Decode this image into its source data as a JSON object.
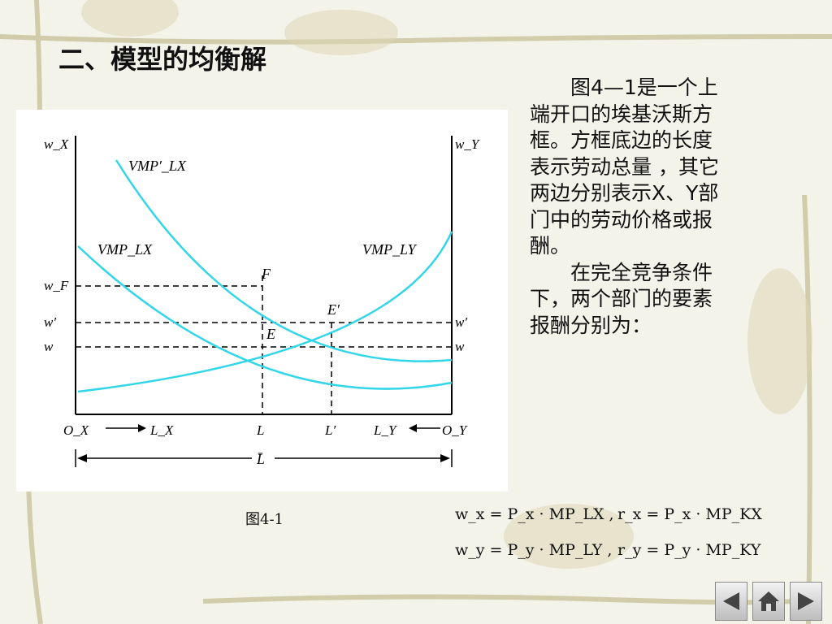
{
  "slide": {
    "title": "二、模型的均衡解",
    "paragraphs": [
      "图4—1是一个上端开口的埃基沃斯方框。方框底边的长度表示劳动总量 ，其它两边分别表示X、Y部门中的劳动价格或报酬。",
      "在完全竞争条件下，两个部门的要素报酬分别为："
    ],
    "figure_caption": "图4-1",
    "formulas": [
      [
        "w_x = P_x · MP_LX ,",
        "r_x = P_x · MP_KX"
      ],
      [
        "w_y = P_y · MP_LY ,",
        "r_y = P_y · MP_KY"
      ]
    ]
  },
  "diagram": {
    "axis_top_left": "w_X",
    "axis_top_right": "w_Y",
    "origin_left": "O_X",
    "origin_right": "O_Y",
    "direction_left": "L_X",
    "direction_right": "L_Y",
    "curves": {
      "vmp_lx_shifted": "VMP′_LX",
      "vmp_lx": "VMP_LX",
      "vmp_ly": "VMP_LY"
    },
    "points": {
      "F": "F",
      "E": "E",
      "E_prime": "E′"
    },
    "left_levels": [
      "w_F",
      "w′",
      "w"
    ],
    "right_levels": [
      "w′",
      "w"
    ],
    "bottom_points": [
      "L",
      "L′"
    ],
    "total_length": "L̄",
    "curve_color": "#33d6e8"
  },
  "nav": {
    "icons": [
      "prev-arrow-icon",
      "home-icon",
      "next-arrow-icon"
    ]
  }
}
